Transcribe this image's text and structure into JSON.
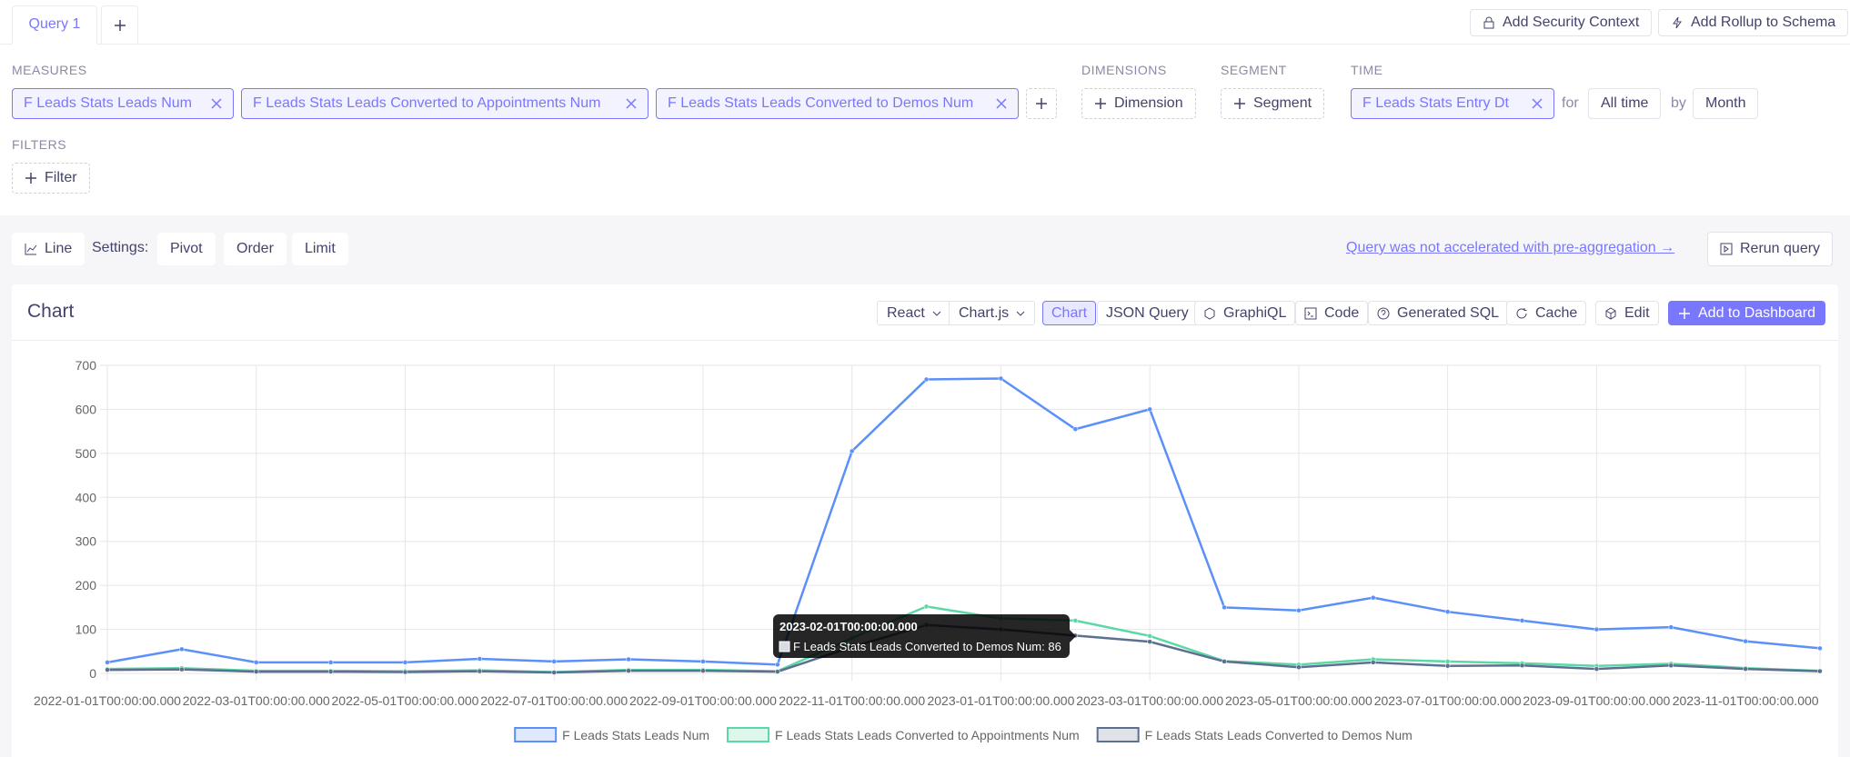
{
  "tabs": {
    "active": "Query 1"
  },
  "header_actions": [
    "Add Security Context",
    "Add Rollup to Schema"
  ],
  "query": {
    "measures_label": "MEASURES",
    "measures": [
      "F Leads Stats Leads Num",
      "F Leads Stats Leads Converted to Appointments Num",
      "F Leads Stats Leads Converted to Demos Num"
    ],
    "dimensions_label": "DIMENSIONS",
    "dimension_button": "Dimension",
    "segment_label": "SEGMENT",
    "segment_button": "Segment",
    "time_label": "TIME",
    "time_dimension": "F Leads Stats Entry Dt",
    "for": "for",
    "range": "All time",
    "by": "by",
    "granularity": "Month",
    "filters_label": "FILTERS",
    "filter_button": "Filter"
  },
  "toolbar": {
    "chart_type": "Line",
    "settings": "Settings:",
    "options": [
      "Pivot",
      "Order",
      "Limit"
    ],
    "notice": "Query was not accelerated with pre-aggregation →",
    "rerun": "Rerun query"
  },
  "card": {
    "title": "Chart",
    "framework": "React",
    "library": "Chart.js",
    "tabs": [
      "Chart",
      "JSON Query",
      "GraphiQL",
      "Code",
      "Generated SQL",
      "Cache"
    ],
    "edit": "Edit",
    "add": "Add to Dashboard"
  },
  "chart_data": {
    "type": "line",
    "categories": [
      "2022-01-01T00:00:00.000",
      null,
      "2022-03-01T00:00:00.000",
      null,
      "2022-05-01T00:00:00.000",
      null,
      "2022-07-01T00:00:00.000",
      null,
      "2022-09-01T00:00:00.000",
      null,
      "2022-11-01T00:00:00.000",
      null,
      "2023-01-01T00:00:00.000",
      null,
      "2023-03-01T00:00:00.000",
      null,
      "2023-05-01T00:00:00.000",
      null,
      "2023-07-01T00:00:00.000",
      null,
      "2023-09-01T00:00:00.000",
      null,
      "2023-11-01T00:00:00.000",
      null
    ],
    "series": [
      {
        "name": "F Leads Stats Leads Num",
        "color": "#5b8ff9",
        "values": [
          25,
          55,
          25,
          25,
          25,
          33,
          27,
          32,
          27,
          20,
          505,
          668,
          670,
          555,
          600,
          150,
          143,
          172,
          140,
          120,
          100,
          105,
          73,
          57
        ]
      },
      {
        "name": "F Leads Stats Leads Converted to Appointments Num",
        "color": "#5ad8a6",
        "values": [
          10,
          12,
          6,
          6,
          5,
          7,
          3,
          8,
          8,
          5,
          80,
          152,
          125,
          120,
          85,
          28,
          20,
          32,
          27,
          23,
          17,
          22,
          12,
          6
        ]
      },
      {
        "name": "F Leads Stats Leads Converted to Demos Num",
        "color": "#5d7092",
        "values": [
          8,
          9,
          4,
          4,
          3,
          5,
          2,
          6,
          6,
          4,
          60,
          110,
          100,
          86,
          72,
          27,
          14,
          25,
          17,
          18,
          10,
          18,
          10,
          5
        ]
      }
    ],
    "ylim": [
      0,
      700
    ],
    "yticks": [
      0,
      100,
      200,
      300,
      400,
      500,
      600,
      700
    ],
    "grid": true
  },
  "tooltip": {
    "title": "2023-02-01T00:00:00.000",
    "text": "F Leads Stats Leads Converted to Demos Num: 86"
  }
}
